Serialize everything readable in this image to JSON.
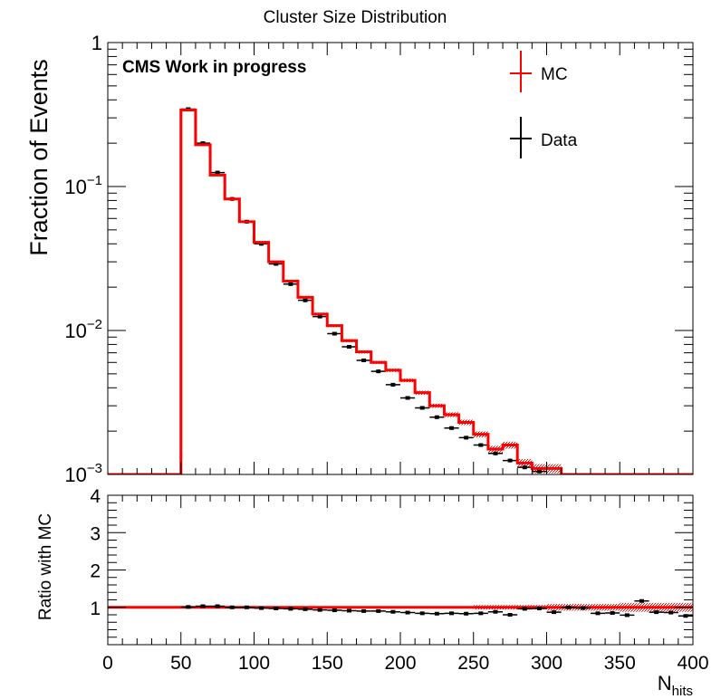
{
  "chart_data": [
    {
      "type": "step",
      "title": "Cluster Size Distribution",
      "annotation": "CMS Work in progress",
      "xlabel": "N",
      "xlabel_sub": "hits",
      "ylabel": "Fraction of Events",
      "xlim": [
        0,
        400
      ],
      "ylim": [
        0.001,
        1
      ],
      "yscale": "log",
      "x_ticks": [
        0,
        50,
        100,
        150,
        200,
        250,
        300,
        350,
        400
      ],
      "y_ticks": [
        {
          "value": 1,
          "base": "1",
          "exp": ""
        },
        {
          "value": 0.1,
          "base": "10",
          "exp": "−1"
        },
        {
          "value": 0.01,
          "base": "10",
          "exp": "−2"
        },
        {
          "value": 0.001,
          "base": "10",
          "exp": "−3"
        }
      ],
      "legend": {
        "placement": "top-right",
        "entries": [
          {
            "label": "MC",
            "color": "#ff0000"
          },
          {
            "label": "Data",
            "color": "#000000"
          }
        ]
      },
      "bin_edges": [
        0,
        50,
        60,
        70,
        80,
        90,
        100,
        110,
        120,
        130,
        140,
        150,
        160,
        170,
        180,
        190,
        200,
        210,
        220,
        230,
        240,
        250,
        260,
        270,
        280,
        290,
        300,
        310,
        400
      ],
      "series": [
        {
          "name": "MC",
          "color": "#ff0000",
          "values": [
            0.001,
            0.34,
            0.195,
            0.12,
            0.082,
            0.057,
            0.041,
            0.03,
            0.022,
            0.017,
            0.013,
            0.0108,
            0.0085,
            0.0071,
            0.006,
            0.0053,
            0.0045,
            0.0037,
            0.003,
            0.0026,
            0.0023,
            0.0019,
            0.0015,
            0.0016,
            0.0012,
            0.0011,
            0.0011,
            0.001
          ],
          "band_errors": [
            0,
            0.004,
            0.003,
            0.002,
            0.0015,
            0.001,
            0.0008,
            0.0006,
            0.0005,
            0.0004,
            0.0003,
            0.00025,
            0.0002,
            0.00018,
            0.00016,
            0.00015,
            0.00013,
            0.00012,
            0.0001,
            0.0001,
            0.0001,
            9e-05,
            8e-05,
            9e-05,
            8e-05,
            8e-05,
            8e-05,
            0
          ]
        },
        {
          "name": "Data",
          "color": "#000000",
          "points": [
            {
              "x": 55,
              "y": 0.345
            },
            {
              "x": 65,
              "y": 0.2
            },
            {
              "x": 75,
              "y": 0.125
            },
            {
              "x": 85,
              "y": 0.082
            },
            {
              "x": 95,
              "y": 0.057
            },
            {
              "x": 105,
              "y": 0.04
            },
            {
              "x": 115,
              "y": 0.029
            },
            {
              "x": 125,
              "y": 0.021
            },
            {
              "x": 135,
              "y": 0.0162
            },
            {
              "x": 145,
              "y": 0.0125
            },
            {
              "x": 155,
              "y": 0.0095
            },
            {
              "x": 165,
              "y": 0.0077
            },
            {
              "x": 175,
              "y": 0.0062
            },
            {
              "x": 185,
              "y": 0.0052
            },
            {
              "x": 195,
              "y": 0.0042
            },
            {
              "x": 205,
              "y": 0.0034
            },
            {
              "x": 215,
              "y": 0.0029
            },
            {
              "x": 225,
              "y": 0.0025
            },
            {
              "x": 235,
              "y": 0.0021
            },
            {
              "x": 245,
              "y": 0.0018
            },
            {
              "x": 255,
              "y": 0.0016
            },
            {
              "x": 265,
              "y": 0.0014
            },
            {
              "x": 275,
              "y": 0.00125
            },
            {
              "x": 285,
              "y": 0.00112
            },
            {
              "x": 295,
              "y": 0.00105
            }
          ]
        }
      ]
    },
    {
      "type": "scatter",
      "ylabel": "Ratio with MC",
      "xlim": [
        0,
        400
      ],
      "ylim": [
        0,
        4
      ],
      "y_ticks": [
        1,
        2,
        3,
        4
      ],
      "reference_line": {
        "y": 1,
        "color": "#ff0000"
      },
      "band_halfwidth": [
        {
          "x0": 50,
          "x1": 250,
          "half": 0.02
        },
        {
          "x0": 250,
          "x1": 300,
          "half": 0.06
        },
        {
          "x0": 300,
          "x1": 350,
          "half": 0.09
        },
        {
          "x0": 350,
          "x1": 400,
          "half": 0.12
        }
      ],
      "points": [
        {
          "x": 55,
          "y": 1.01
        },
        {
          "x": 65,
          "y": 1.03
        },
        {
          "x": 75,
          "y": 1.03
        },
        {
          "x": 85,
          "y": 1.0
        },
        {
          "x": 95,
          "y": 1.0
        },
        {
          "x": 105,
          "y": 0.98
        },
        {
          "x": 115,
          "y": 0.97
        },
        {
          "x": 125,
          "y": 0.96
        },
        {
          "x": 135,
          "y": 0.95
        },
        {
          "x": 145,
          "y": 0.93
        },
        {
          "x": 155,
          "y": 0.92
        },
        {
          "x": 165,
          "y": 0.91
        },
        {
          "x": 175,
          "y": 0.9
        },
        {
          "x": 185,
          "y": 0.9
        },
        {
          "x": 195,
          "y": 0.88
        },
        {
          "x": 205,
          "y": 0.86
        },
        {
          "x": 215,
          "y": 0.84
        },
        {
          "x": 225,
          "y": 0.83
        },
        {
          "x": 235,
          "y": 0.84
        },
        {
          "x": 245,
          "y": 0.83
        },
        {
          "x": 255,
          "y": 0.84
        },
        {
          "x": 265,
          "y": 0.88
        },
        {
          "x": 275,
          "y": 0.8
        },
        {
          "x": 285,
          "y": 0.96
        },
        {
          "x": 295,
          "y": 0.97
        },
        {
          "x": 305,
          "y": 0.87
        },
        {
          "x": 315,
          "y": 1.0
        },
        {
          "x": 325,
          "y": 0.98
        },
        {
          "x": 335,
          "y": 0.84
        },
        {
          "x": 345,
          "y": 0.85
        },
        {
          "x": 355,
          "y": 0.79
        },
        {
          "x": 365,
          "y": 1.17
        },
        {
          "x": 375,
          "y": 0.87
        },
        {
          "x": 385,
          "y": 0.86
        },
        {
          "x": 395,
          "y": 0.77
        }
      ]
    }
  ]
}
